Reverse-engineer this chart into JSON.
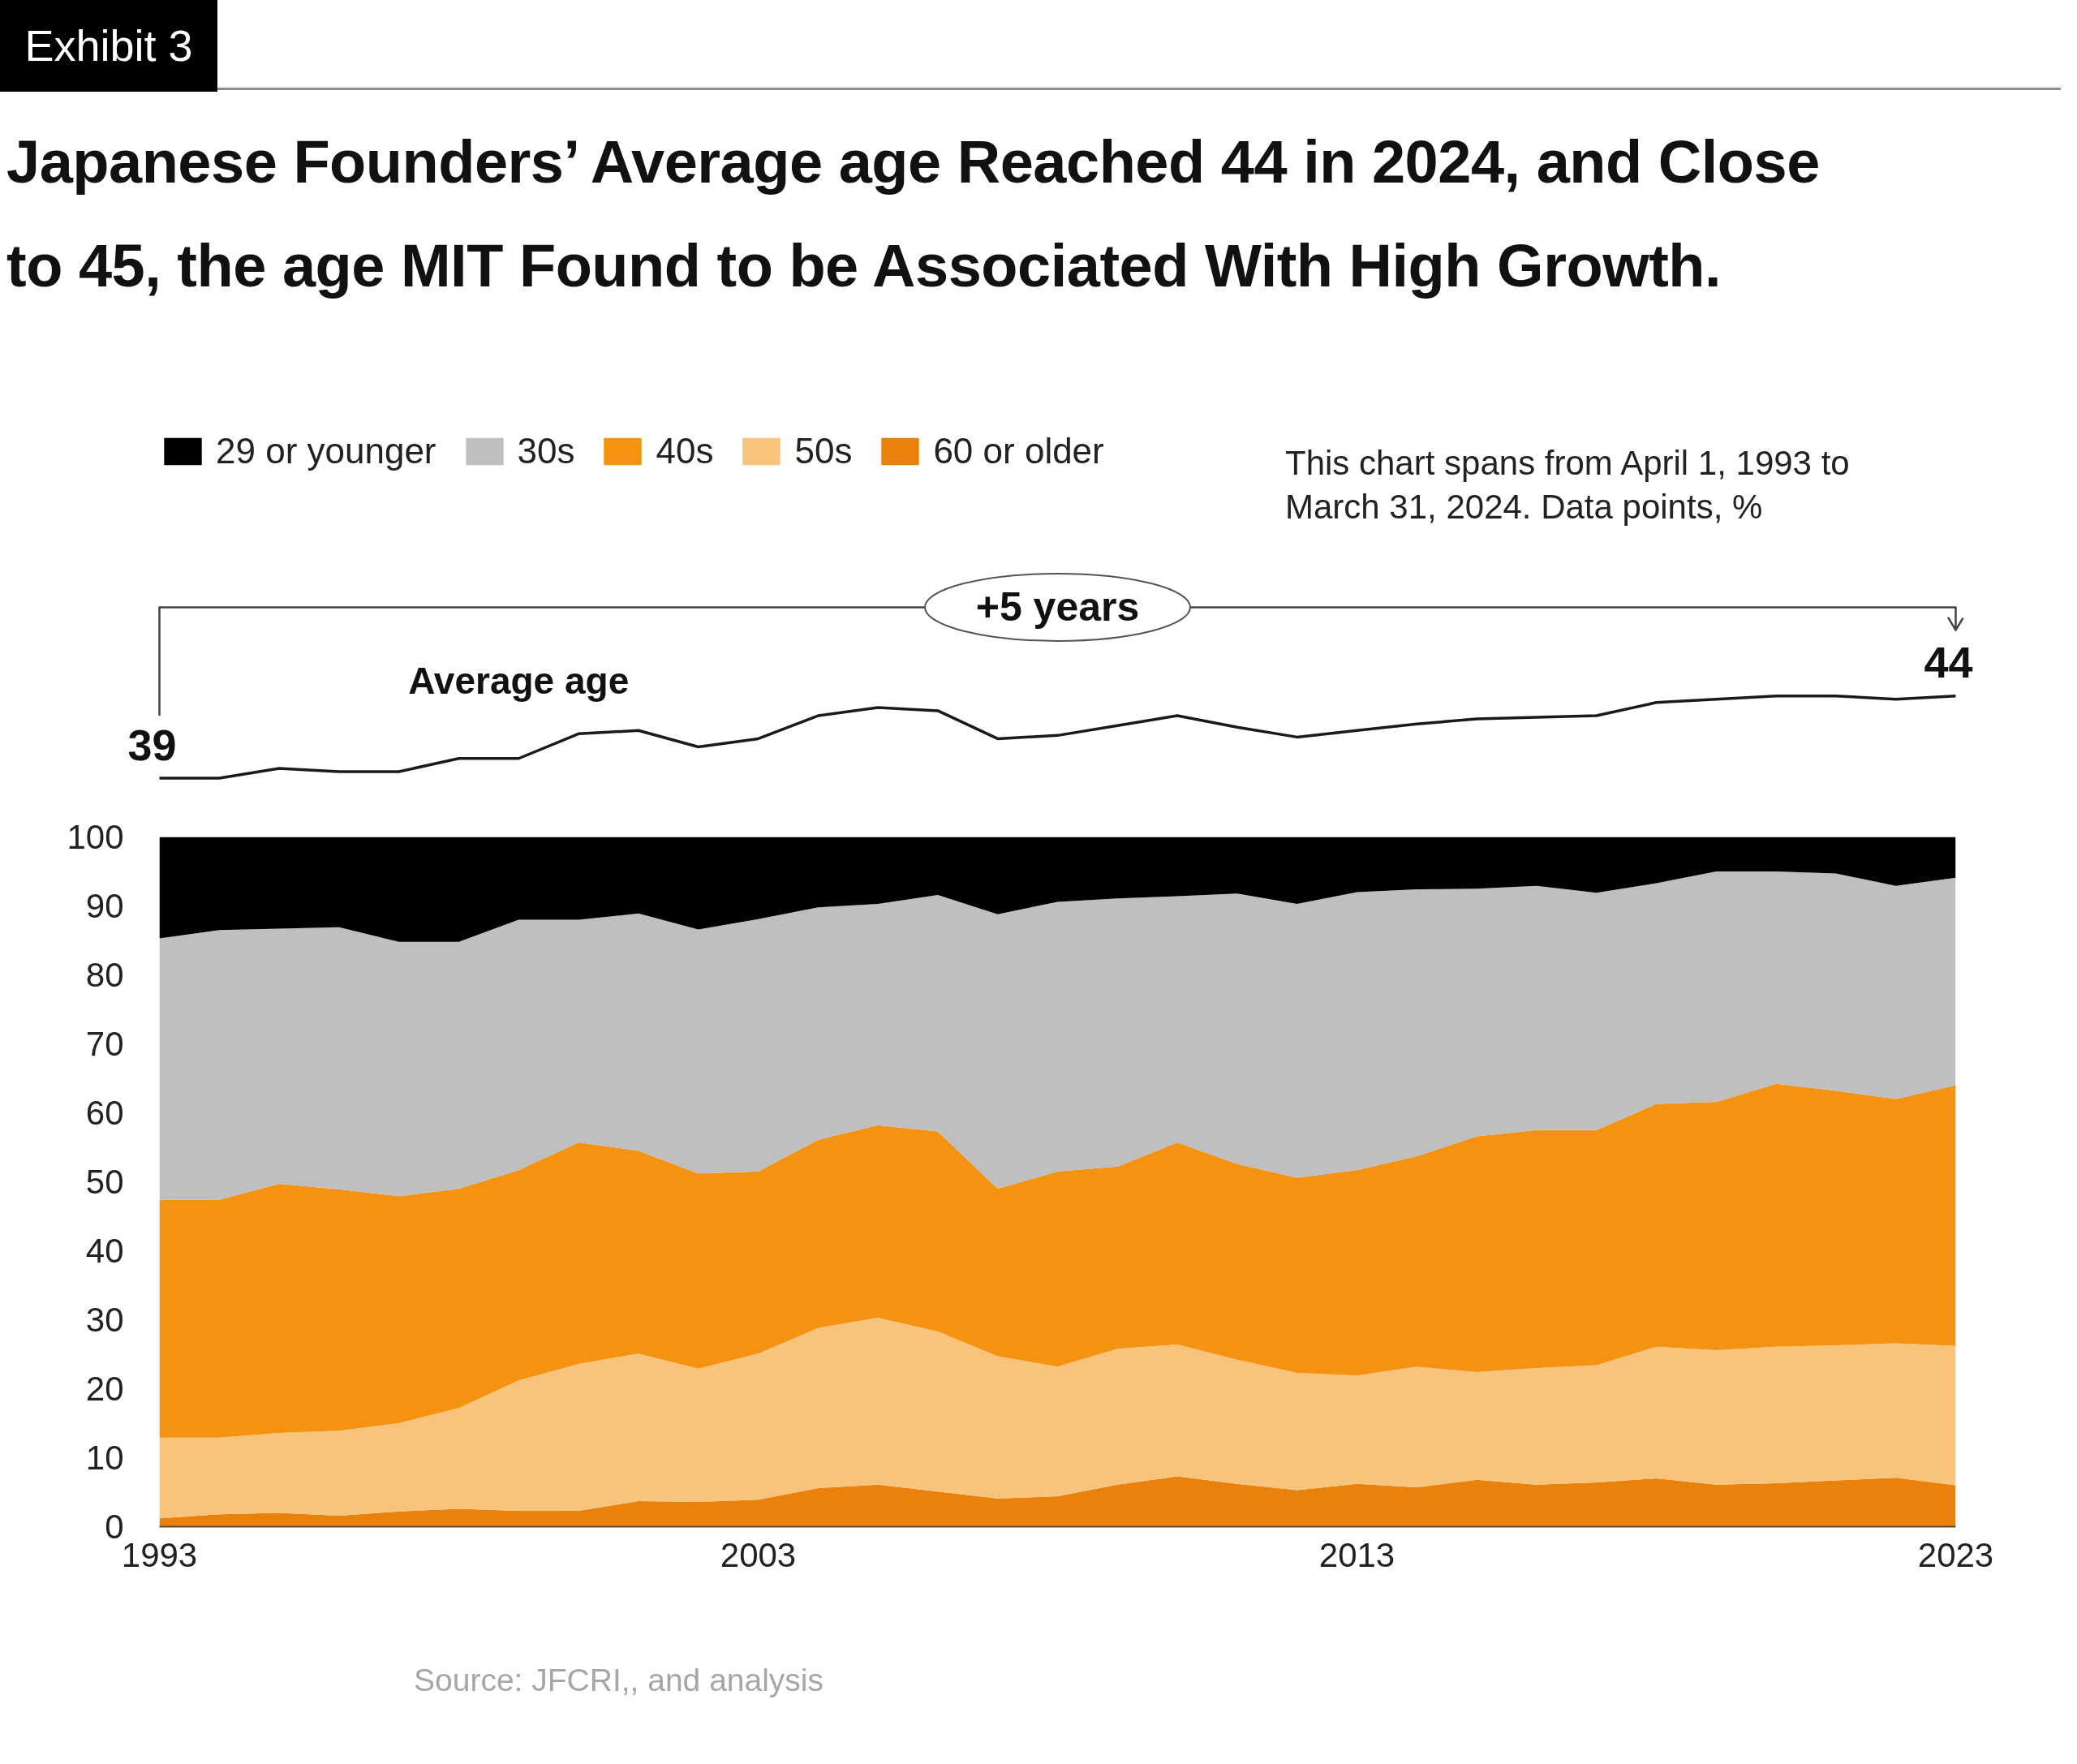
{
  "chart_data": [
    {
      "type": "line",
      "title": "Japanese Founders’ Average age Reached 44 in 2024, and Close to 45, the age MIT Found to be Associated With High Growth.",
      "annotations": [
        "Exhibit 3",
        "+5 years"
      ],
      "x": [
        1993,
        1994,
        1995,
        1996,
        1997,
        1998,
        1999,
        2000,
        2001,
        2002,
        2003,
        2004,
        2005,
        2006,
        2007,
        2008,
        2009,
        2010,
        2011,
        2012,
        2013,
        2014,
        2015,
        2016,
        2017,
        2018,
        2019,
        2020,
        2021,
        2022,
        2023
      ],
      "tick_labels": false,
      "series": [
        {
          "name": "Average age",
          "color": "#1a1a1a",
          "values": [
            39.0,
            39.0,
            39.6,
            39.4,
            39.4,
            40.2,
            40.2,
            41.7,
            41.9,
            40.9,
            41.4,
            42.8,
            43.3,
            43.1,
            41.4,
            41.6,
            42.2,
            42.8,
            42.1,
            41.5,
            41.9,
            42.3,
            42.6,
            42.7,
            42.8,
            43.6,
            43.8,
            44.0,
            44.0,
            43.8,
            44.0
          ],
          "value_labels": [
            "39",
            null,
            null,
            null,
            null,
            null,
            null,
            null,
            null,
            null,
            null,
            null,
            null,
            null,
            null,
            null,
            null,
            null,
            null,
            null,
            null,
            null,
            null,
            null,
            null,
            null,
            null,
            null,
            null,
            null,
            "44"
          ]
        }
      ]
    },
    {
      "type": "area",
      "stacked": true,
      "x": [
        1993,
        1994,
        1995,
        1996,
        1997,
        1998,
        1999,
        2000,
        2001,
        2002,
        2003,
        2004,
        2005,
        2006,
        2007,
        2008,
        2009,
        2010,
        2011,
        2012,
        2013,
        2014,
        2015,
        2016,
        2017,
        2018,
        2019,
        2020,
        2021,
        2022,
        2023
      ],
      "xlim": [
        1993,
        2023
      ],
      "xticks": [
        1993,
        2003,
        2013,
        2023
      ],
      "ylim": [
        0,
        100
      ],
      "yticks": [
        0,
        10,
        20,
        30,
        40,
        50,
        60,
        70,
        80,
        90,
        100
      ],
      "legend": "top left",
      "annotations": [
        "This chart spans from April 1, 1993 to March 31, 2024. Data points, %",
        "Source: JFCRI,, and analysis"
      ],
      "series": [
        {
          "name": "60 or older",
          "color": "#e9820c",
          "values": [
            1.2,
            1.8,
            2.0,
            1.6,
            2.2,
            2.6,
            2.3,
            2.3,
            3.7,
            3.6,
            3.9,
            5.6,
            6.1,
            5.1,
            4.1,
            4.4,
            6.1,
            7.3,
            6.2,
            5.3,
            6.2,
            5.7,
            6.8,
            6.1,
            6.4,
            7.0,
            6.1,
            6.3,
            6.7,
            7.1,
            6.0
          ]
        },
        {
          "name": "50s",
          "color": "#f8c47b",
          "values": [
            11.7,
            11.1,
            11.6,
            12.3,
            12.8,
            14.6,
            18.9,
            21.3,
            21.4,
            19.3,
            21.2,
            23.2,
            24.2,
            23.2,
            20.6,
            18.8,
            19.7,
            19.1,
            18.0,
            17.0,
            15.7,
            17.5,
            15.6,
            16.9,
            17.0,
            19.1,
            19.5,
            19.8,
            19.6,
            19.5,
            20.2
          ]
        },
        {
          "name": "40s",
          "color": "#f49212",
          "values": [
            34.5,
            34.5,
            36.1,
            35.0,
            32.9,
            31.8,
            30.5,
            32.1,
            29.4,
            28.3,
            26.4,
            27.3,
            27.9,
            29.0,
            24.3,
            28.3,
            26.4,
            29.3,
            28.4,
            28.3,
            29.8,
            30.5,
            34.2,
            34.5,
            34.1,
            35.2,
            36.0,
            38.1,
            36.9,
            35.4,
            37.8
          ]
        },
        {
          "name": "30s",
          "color": "#bfbfbf",
          "values": [
            37.9,
            39.1,
            37.0,
            38.0,
            36.9,
            35.8,
            36.3,
            32.3,
            34.4,
            35.4,
            36.6,
            33.7,
            32.1,
            34.3,
            39.8,
            39.1,
            38.9,
            35.7,
            39.2,
            39.7,
            40.3,
            38.7,
            35.9,
            35.4,
            34.4,
            32.0,
            33.4,
            30.8,
            31.5,
            30.9,
            30.1
          ]
        },
        {
          "name": "29 or younger",
          "color": "#000000",
          "values": [
            14.7,
            13.5,
            13.3,
            13.1,
            15.2,
            15.2,
            12.0,
            12.0,
            11.1,
            13.4,
            11.9,
            10.2,
            9.7,
            8.4,
            11.2,
            9.4,
            8.9,
            8.6,
            8.2,
            9.7,
            8.0,
            7.6,
            7.5,
            7.1,
            8.1,
            6.7,
            5.0,
            5.0,
            5.3,
            7.1,
            5.9
          ]
        }
      ]
    }
  ]
}
